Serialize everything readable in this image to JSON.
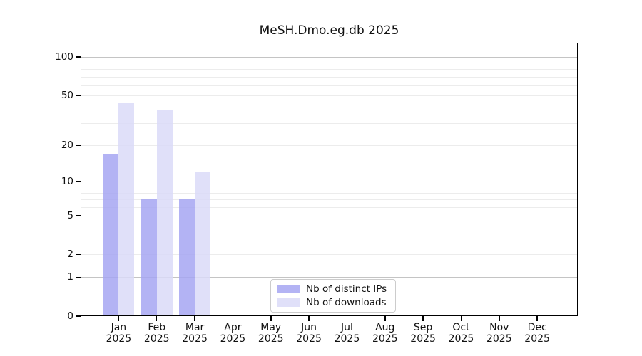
{
  "chart_data": {
    "type": "bar",
    "title": "MeSH.Dmo.eg.db 2025",
    "year": "2025",
    "months": [
      "Jan",
      "Feb",
      "Mar",
      "Apr",
      "May",
      "Jun",
      "Jul",
      "Aug",
      "Sep",
      "Oct",
      "Nov",
      "Dec"
    ],
    "series": [
      {
        "name": "Nb of distinct IPs",
        "color": "#a6a6f2",
        "values": [
          17,
          7,
          7,
          0,
          0,
          0,
          0,
          0,
          0,
          0,
          0,
          0
        ]
      },
      {
        "name": "Nb of downloads",
        "color": "#dbdbf8",
        "values": [
          44,
          38,
          12,
          0,
          0,
          0,
          0,
          0,
          0,
          0,
          0,
          0
        ]
      }
    ],
    "yscale": "log1p",
    "ylim": [
      0,
      129
    ],
    "yticks": [
      0,
      1,
      2,
      5,
      10,
      20,
      50,
      100
    ],
    "major_gridlines": [
      1,
      10,
      100
    ],
    "minor_gridlines": [
      2,
      3,
      4,
      5,
      6,
      7,
      8,
      9,
      20,
      30,
      40,
      50,
      60,
      70,
      80,
      90
    ],
    "grid": true,
    "legend_position": "bottom-center",
    "colors": {
      "frame": "#000000",
      "major_grid": "#c4c4c4",
      "minor_grid": "#ececec"
    }
  }
}
